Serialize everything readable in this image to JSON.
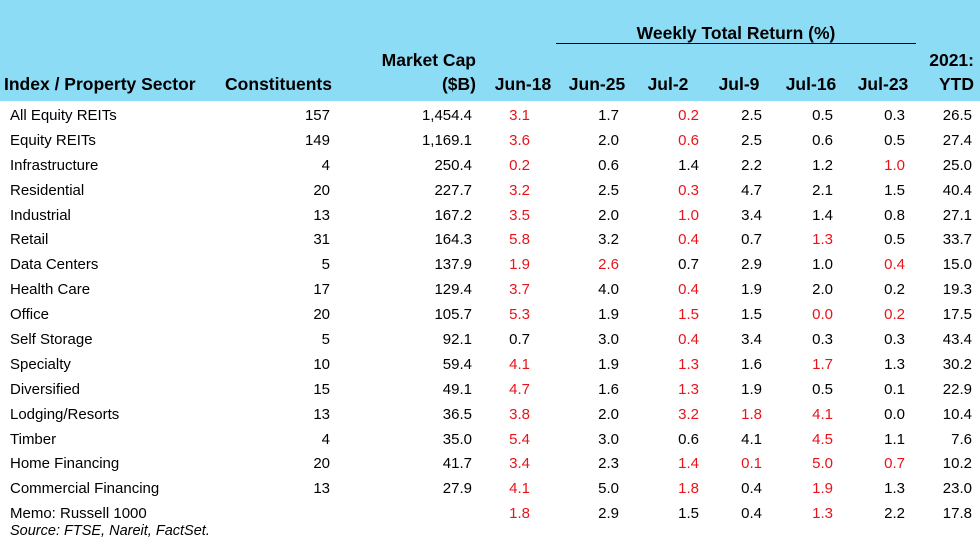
{
  "header": {
    "group_title": "Weekly Total Return (%)",
    "col_index": "Index / Property Sector",
    "col_constituents": "Constituents",
    "col_mcap_line1": "Market Cap",
    "col_mcap_line2": "($B)",
    "weeks": [
      "Jun-18",
      "Jun-25",
      "Jul-2",
      "Jul-9",
      "Jul-16",
      "Jul-23"
    ],
    "col_ytd_line1": "2021:",
    "col_ytd_line2": "YTD"
  },
  "colors": {
    "header_bg": "#8ddcf6",
    "negative": "#e8141b"
  },
  "rows": [
    {
      "name": "All Equity REITs",
      "constituents": "157",
      "mcap": "1,454.4",
      "weekly": [
        "3.1",
        "1.7",
        "0.2",
        "2.5",
        "0.5",
        "0.3"
      ],
      "neg": [
        true,
        false,
        true,
        false,
        false,
        false
      ],
      "ytd": "26.5"
    },
    {
      "name": "Equity REITs",
      "constituents": "149",
      "mcap": "1,169.1",
      "weekly": [
        "3.6",
        "2.0",
        "0.6",
        "2.5",
        "0.6",
        "0.5"
      ],
      "neg": [
        true,
        false,
        true,
        false,
        false,
        false
      ],
      "ytd": "27.4"
    },
    {
      "name": "Infrastructure",
      "constituents": "4",
      "mcap": "250.4",
      "weekly": [
        "0.2",
        "0.6",
        "1.4",
        "2.2",
        "1.2",
        "1.0"
      ],
      "neg": [
        true,
        false,
        false,
        false,
        false,
        true
      ],
      "ytd": "25.0"
    },
    {
      "name": "Residential",
      "constituents": "20",
      "mcap": "227.7",
      "weekly": [
        "3.2",
        "2.5",
        "0.3",
        "4.7",
        "2.1",
        "1.5"
      ],
      "neg": [
        true,
        false,
        true,
        false,
        false,
        false
      ],
      "ytd": "40.4"
    },
    {
      "name": "Industrial",
      "constituents": "13",
      "mcap": "167.2",
      "weekly": [
        "3.5",
        "2.0",
        "1.0",
        "3.4",
        "1.4",
        "0.8"
      ],
      "neg": [
        true,
        false,
        true,
        false,
        false,
        false
      ],
      "ytd": "27.1"
    },
    {
      "name": "Retail",
      "constituents": "31",
      "mcap": "164.3",
      "weekly": [
        "5.8",
        "3.2",
        "0.4",
        "0.7",
        "1.3",
        "0.5"
      ],
      "neg": [
        true,
        false,
        true,
        false,
        true,
        false
      ],
      "ytd": "33.7"
    },
    {
      "name": "Data Centers",
      "constituents": "5",
      "mcap": "137.9",
      "weekly": [
        "1.9",
        "2.6",
        "0.7",
        "2.9",
        "1.0",
        "0.4"
      ],
      "neg": [
        true,
        true,
        false,
        false,
        false,
        true
      ],
      "ytd": "15.0"
    },
    {
      "name": "Health Care",
      "constituents": "17",
      "mcap": "129.4",
      "weekly": [
        "3.7",
        "4.0",
        "0.4",
        "1.9",
        "2.0",
        "0.2"
      ],
      "neg": [
        true,
        false,
        true,
        false,
        false,
        false
      ],
      "ytd": "19.3"
    },
    {
      "name": "Office",
      "constituents": "20",
      "mcap": "105.7",
      "weekly": [
        "5.3",
        "1.9",
        "1.5",
        "1.5",
        "0.0",
        "0.2"
      ],
      "neg": [
        true,
        false,
        true,
        false,
        true,
        true
      ],
      "ytd": "17.5"
    },
    {
      "name": "Self Storage",
      "constituents": "5",
      "mcap": "92.1",
      "weekly": [
        "0.7",
        "3.0",
        "0.4",
        "3.4",
        "0.3",
        "0.3"
      ],
      "neg": [
        false,
        false,
        true,
        false,
        false,
        false
      ],
      "ytd": "43.4"
    },
    {
      "name": "Specialty",
      "constituents": "10",
      "mcap": "59.4",
      "weekly": [
        "4.1",
        "1.9",
        "1.3",
        "1.6",
        "1.7",
        "1.3"
      ],
      "neg": [
        true,
        false,
        true,
        false,
        true,
        false
      ],
      "ytd": "30.2"
    },
    {
      "name": "Diversified",
      "constituents": "15",
      "mcap": "49.1",
      "weekly": [
        "4.7",
        "1.6",
        "1.3",
        "1.9",
        "0.5",
        "0.1"
      ],
      "neg": [
        true,
        false,
        true,
        false,
        false,
        false
      ],
      "ytd": "22.9"
    },
    {
      "name": "Lodging/Resorts",
      "constituents": "13",
      "mcap": "36.5",
      "weekly": [
        "3.8",
        "2.0",
        "3.2",
        "1.8",
        "4.1",
        "0.0"
      ],
      "neg": [
        true,
        false,
        true,
        true,
        true,
        false
      ],
      "ytd": "10.4"
    },
    {
      "name": "Timber",
      "constituents": "4",
      "mcap": "35.0",
      "weekly": [
        "5.4",
        "3.0",
        "0.6",
        "4.1",
        "4.5",
        "1.1"
      ],
      "neg": [
        true,
        false,
        false,
        false,
        true,
        false
      ],
      "ytd": "7.6"
    },
    {
      "name": "Home Financing",
      "constituents": "20",
      "mcap": "41.7",
      "weekly": [
        "3.4",
        "2.3",
        "1.4",
        "0.1",
        "5.0",
        "0.7"
      ],
      "neg": [
        true,
        false,
        true,
        true,
        true,
        true
      ],
      "ytd": "10.2"
    },
    {
      "name": "Commercial Financing",
      "constituents": "13",
      "mcap": "27.9",
      "weekly": [
        "4.1",
        "5.0",
        "1.8",
        "0.4",
        "1.9",
        "1.3"
      ],
      "neg": [
        true,
        false,
        true,
        false,
        true,
        false
      ],
      "ytd": "23.0"
    },
    {
      "name": "Memo: Russell 1000",
      "constituents": "",
      "mcap": "",
      "weekly": [
        "1.8",
        "2.9",
        "1.5",
        "0.4",
        "1.3",
        "2.2"
      ],
      "neg": [
        true,
        false,
        false,
        false,
        true,
        false
      ],
      "ytd": "17.8"
    }
  ],
  "source": "Source: FTSE, Nareit, FactSet."
}
